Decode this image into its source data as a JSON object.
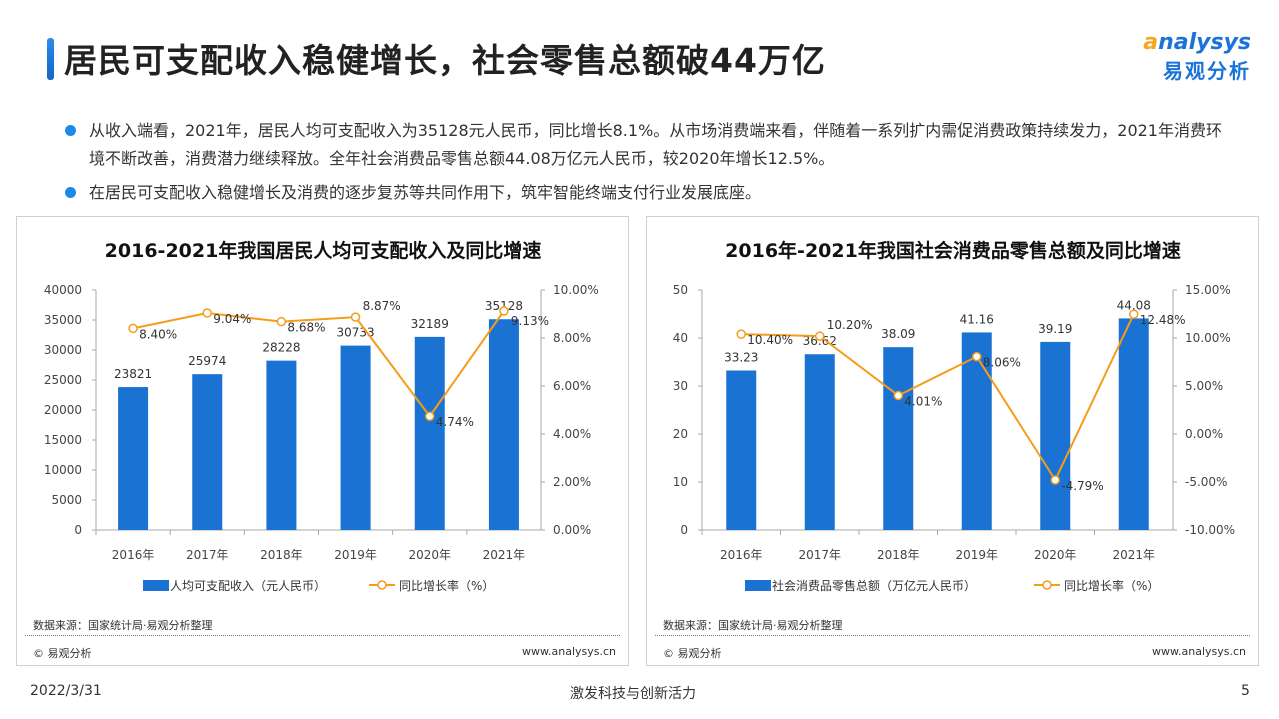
{
  "title": "居民可支配收入稳健增长，社会零售总额破44万亿",
  "logo": {
    "en_a": "a",
    "en_rest": "nalysys",
    "cn": "易观分析"
  },
  "bullets": [
    "从收入端看，2021年，居民人均可支配收入为35128元人民币，同比增长8.1%。从市场消费端来看，伴随着一系列扩内需促消费政策持续发力，2021年消费环境不断改善，消费潜力继续释放。全年社会消费品零售总额44.08万亿元人民币，较2020年增长12.5%。",
    "在居民可支配收入稳健增长及消费的逐步复苏等共同作用下，筑牢智能终端支付行业发展底座。"
  ],
  "colors": {
    "bar": "#1a73d2",
    "line": "#f59c1a",
    "accent": "#1a8ae6"
  },
  "chart_data": [
    {
      "type": "bar+line",
      "title": "2016-2021年我国居民人均可支配收入及同比增速",
      "categories": [
        "2016年",
        "2017年",
        "2018年",
        "2019年",
        "2020年",
        "2021年"
      ],
      "series": [
        {
          "name": "人均可支配收入（元人民币）",
          "type": "bar",
          "axis": "left",
          "values": [
            23821,
            25974,
            28228,
            30733,
            32189,
            35128
          ],
          "labels": [
            "23821",
            "25974",
            "28228",
            "30733",
            "32189",
            "35128"
          ]
        },
        {
          "name": "同比增长率（%）",
          "type": "line",
          "axis": "right",
          "values": [
            8.4,
            9.04,
            8.68,
            8.87,
            4.74,
            9.13
          ],
          "labels": [
            "8.40%",
            "9.04%",
            "8.68%",
            "8.87%",
            "4.74%",
            "9.13%"
          ]
        }
      ],
      "ylim": [
        0,
        40000
      ],
      "yticks": [
        "0",
        "5000",
        "10000",
        "15000",
        "20000",
        "25000",
        "30000",
        "35000",
        "40000"
      ],
      "y2lim": [
        0,
        10
      ],
      "y2ticks": [
        "0.00%",
        "2.00%",
        "4.00%",
        "6.00%",
        "8.00%",
        "10.00%"
      ],
      "legend": "bottom",
      "source": "数据来源：国家统计局·易观分析整理",
      "copyright": "© 易观分析",
      "website": "www.analysys.cn"
    },
    {
      "type": "bar+line",
      "title": "2016年-2021年我国社会消费品零售总额及同比增速",
      "categories": [
        "2016年",
        "2017年",
        "2018年",
        "2019年",
        "2020年",
        "2021年"
      ],
      "series": [
        {
          "name": "社会消费品零售总额（万亿元人民币）",
          "type": "bar",
          "axis": "left",
          "values": [
            33.23,
            36.62,
            38.09,
            41.16,
            39.19,
            44.08
          ],
          "labels": [
            "33.23",
            "36.62",
            "38.09",
            "41.16",
            "39.19",
            "44.08"
          ]
        },
        {
          "name": "同比增长率（%）",
          "type": "line",
          "axis": "right",
          "values": [
            10.4,
            10.2,
            4.01,
            8.06,
            -4.79,
            12.48
          ],
          "labels": [
            "10.40%",
            "10.20%",
            "4.01%",
            "8.06%",
            "-4.79%",
            "12.48%"
          ]
        }
      ],
      "ylim": [
        0,
        50
      ],
      "yticks": [
        "0",
        "10",
        "20",
        "30",
        "40",
        "50"
      ],
      "y2lim": [
        -10,
        15
      ],
      "y2ticks": [
        "-10.00%",
        "-5.00%",
        "0.00%",
        "5.00%",
        "10.00%",
        "15.00%"
      ],
      "legend": "bottom",
      "source": "数据来源：国家统计局·易观分析整理",
      "copyright": "© 易观分析",
      "website": "www.analysys.cn"
    }
  ],
  "footer": {
    "date": "2022/3/31",
    "slogan": "激发科技与创新活力",
    "page": "5"
  }
}
